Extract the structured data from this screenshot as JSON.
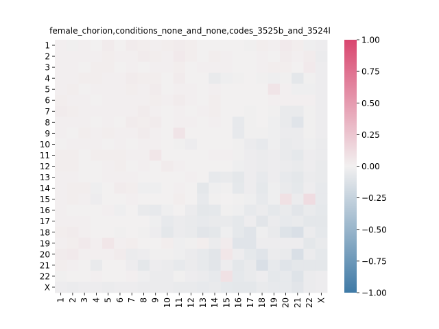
{
  "chart_data": {
    "type": "heatmap",
    "title": "female_chorion,conditions_none_and_none,codes_3525b_and_3524l",
    "xlabel": "",
    "ylabel": "",
    "x_labels": [
      "1",
      "2",
      "3",
      "4",
      "5",
      "6",
      "7",
      "8",
      "9",
      "10",
      "11",
      "12",
      "13",
      "14",
      "15",
      "16",
      "17",
      "18",
      "19",
      "20",
      "21",
      "22",
      "X"
    ],
    "y_labels": [
      "1",
      "2",
      "3",
      "4",
      "5",
      "6",
      "7",
      "8",
      "9",
      "10",
      "11",
      "12",
      "13",
      "14",
      "15",
      "16",
      "17",
      "18",
      "19",
      "20",
      "21",
      "22",
      "X"
    ],
    "color_range": [
      -1.0,
      1.0
    ],
    "colorbar": {
      "ticks": [
        "1.00",
        "0.75",
        "0.50",
        "0.25",
        "0.00",
        "−0.25",
        "−0.50",
        "−0.75",
        "−1.00"
      ],
      "colors": {
        "negative": "#3f7aa6",
        "zero": "#f2f0f0",
        "positive": "#d9466f"
      }
    },
    "values": [
      [
        0.01,
        -0.01,
        0.01,
        0.0,
        0.03,
        0.0,
        0.03,
        0.02,
        0.01,
        0.02,
        0.03,
        0.02,
        0.0,
        0.0,
        0.0,
        0.0,
        -0.01,
        0.02,
        0.01,
        0.04,
        0.02,
        -0.02,
        -0.03
      ],
      [
        0.01,
        0.01,
        0.01,
        0.01,
        0.02,
        0.01,
        0.01,
        0.03,
        0.02,
        0.01,
        0.04,
        0.02,
        0.0,
        0.02,
        0.01,
        0.0,
        0.0,
        0.01,
        0.0,
        0.03,
        0.01,
        0.03,
        -0.04
      ],
      [
        0.01,
        0.01,
        0.0,
        0.02,
        0.02,
        0.0,
        0.01,
        0.0,
        0.01,
        0.01,
        0.02,
        0.0,
        0.01,
        0.01,
        0.01,
        0.0,
        0.0,
        0.01,
        0.02,
        0.02,
        0.0,
        0.04,
        -0.03
      ],
      [
        0.01,
        0.01,
        0.02,
        0.02,
        0.01,
        0.01,
        0.03,
        0.02,
        0.02,
        0.0,
        0.03,
        0.0,
        0.0,
        -0.05,
        -0.02,
        -0.01,
        0.0,
        -0.01,
        -0.02,
        -0.01,
        -0.08,
        -0.01,
        -0.03
      ],
      [
        0.01,
        0.02,
        0.0,
        0.01,
        0.01,
        0.01,
        0.02,
        0.01,
        0.03,
        0.0,
        0.01,
        0.01,
        0.0,
        0.01,
        0.0,
        0.0,
        0.0,
        0.0,
        0.07,
        0.01,
        -0.02,
        -0.02,
        -0.03
      ],
      [
        0.02,
        0.01,
        0.01,
        0.0,
        0.01,
        0.01,
        0.01,
        0.01,
        0.02,
        0.01,
        0.03,
        0.01,
        0.0,
        0.02,
        0.0,
        0.0,
        0.0,
        0.0,
        0.01,
        0.01,
        0.01,
        0.01,
        -0.03
      ],
      [
        0.03,
        0.02,
        0.01,
        0.01,
        0.01,
        0.01,
        0.01,
        0.03,
        0.01,
        0.0,
        0.01,
        0.0,
        0.01,
        0.02,
        0.0,
        0.0,
        -0.01,
        0.0,
        -0.01,
        -0.05,
        -0.05,
        -0.01,
        -0.03
      ],
      [
        0.01,
        0.01,
        0.01,
        0.0,
        0.01,
        0.0,
        0.03,
        0.02,
        0.03,
        0.0,
        0.01,
        0.01,
        0.0,
        0.01,
        0.0,
        -0.06,
        -0.01,
        0.0,
        -0.02,
        -0.05,
        -0.1,
        -0.01,
        -0.03
      ],
      [
        0.01,
        0.0,
        0.02,
        0.01,
        0.02,
        0.01,
        0.01,
        0.03,
        0.01,
        0.0,
        0.07,
        0.0,
        0.0,
        0.0,
        0.0,
        -0.06,
        -0.01,
        -0.01,
        -0.02,
        -0.04,
        -0.04,
        -0.01,
        -0.03
      ],
      [
        0.0,
        0.01,
        0.01,
        0.01,
        0.0,
        0.01,
        0.0,
        0.01,
        0.01,
        0.0,
        -0.01,
        -0.03,
        0.0,
        0.0,
        0.0,
        -0.01,
        -0.04,
        -0.06,
        -0.02,
        -0.05,
        -0.04,
        -0.02,
        -0.04
      ],
      [
        0.02,
        0.02,
        0.0,
        0.02,
        0.02,
        0.02,
        0.01,
        0.01,
        0.06,
        0.0,
        0.0,
        0.0,
        0.0,
        0.01,
        0.01,
        -0.01,
        -0.03,
        -0.04,
        -0.03,
        -0.05,
        -0.07,
        -0.03,
        -0.04
      ],
      [
        0.02,
        0.02,
        0.0,
        0.0,
        0.01,
        0.02,
        0.0,
        0.01,
        0.0,
        0.03,
        0.01,
        0.0,
        0.0,
        0.0,
        0.0,
        -0.02,
        -0.03,
        -0.04,
        -0.03,
        -0.04,
        -0.05,
        -0.03,
        -0.05
      ],
      [
        0.01,
        0.01,
        0.0,
        0.0,
        0.01,
        0.01,
        0.01,
        0.0,
        0.0,
        0.0,
        0.0,
        0.01,
        0.0,
        -0.06,
        -0.05,
        -0.08,
        -0.03,
        -0.06,
        -0.03,
        -0.06,
        -0.08,
        -0.04,
        -0.05
      ],
      [
        0.01,
        0.02,
        0.02,
        -0.02,
        0.0,
        0.03,
        0.02,
        -0.02,
        -0.02,
        0.0,
        0.01,
        0.0,
        -0.08,
        -0.02,
        -0.01,
        -0.07,
        -0.03,
        -0.07,
        -0.02,
        -0.05,
        -0.07,
        -0.03,
        -0.06
      ],
      [
        0.01,
        0.02,
        0.01,
        -0.03,
        0.0,
        0.0,
        0.01,
        0.0,
        0.0,
        0.0,
        0.02,
        0.0,
        -0.06,
        -0.01,
        0.0,
        -0.01,
        -0.02,
        -0.06,
        -0.02,
        0.09,
        -0.04,
        0.12,
        -0.06
      ],
      [
        0.01,
        0.0,
        0.0,
        0.0,
        0.01,
        -0.02,
        0.0,
        -0.05,
        -0.06,
        -0.02,
        0.0,
        -0.04,
        -0.08,
        -0.07,
        -0.01,
        -0.02,
        -0.06,
        -0.04,
        -0.07,
        -0.05,
        -0.09,
        -0.05,
        -0.07
      ],
      [
        0.01,
        0.01,
        0.01,
        0.0,
        0.0,
        0.0,
        0.0,
        0.0,
        -0.02,
        -0.06,
        -0.04,
        -0.05,
        -0.06,
        -0.05,
        -0.05,
        -0.07,
        -0.03,
        -0.09,
        -0.04,
        -0.06,
        -0.05,
        -0.08,
        -0.08
      ],
      [
        0.02,
        0.03,
        0.01,
        0.0,
        0.0,
        -0.01,
        0.0,
        -0.01,
        -0.03,
        -0.08,
        -0.04,
        -0.05,
        -0.09,
        -0.08,
        -0.02,
        -0.07,
        -0.1,
        -0.02,
        -0.05,
        -0.11,
        -0.14,
        -0.04,
        -0.07
      ],
      [
        0.01,
        0.02,
        0.04,
        0.01,
        0.06,
        0.01,
        0.02,
        0.0,
        0.0,
        0.02,
        -0.02,
        -0.01,
        0.02,
        -0.04,
        0.03,
        -0.1,
        -0.1,
        -0.03,
        -0.03,
        -0.03,
        -0.03,
        -0.08,
        -0.05
      ],
      [
        0.03,
        0.04,
        0.01,
        0.01,
        0.01,
        0.03,
        -0.04,
        -0.03,
        -0.01,
        -0.01,
        -0.02,
        -0.04,
        -0.06,
        -0.09,
        0.06,
        -0.03,
        -0.07,
        -0.1,
        -0.04,
        -0.05,
        -0.14,
        -0.04,
        -0.07
      ],
      [
        0.02,
        0.01,
        0.0,
        -0.05,
        0.0,
        0.0,
        -0.03,
        -0.08,
        -0.03,
        -0.04,
        -0.06,
        -0.04,
        -0.06,
        -0.09,
        -0.03,
        -0.08,
        -0.05,
        -0.14,
        -0.06,
        -0.1,
        -0.08,
        -0.08,
        -0.08
      ],
      [
        -0.01,
        0.0,
        0.0,
        0.01,
        0.0,
        0.0,
        0.01,
        -0.02,
        -0.04,
        -0.04,
        -0.01,
        -0.03,
        -0.04,
        -0.06,
        0.09,
        -0.07,
        -0.05,
        -0.03,
        -0.07,
        -0.06,
        -0.11,
        -0.04,
        -0.03
      ],
      [
        -0.03,
        -0.04,
        -0.03,
        -0.03,
        -0.04,
        -0.03,
        -0.03,
        -0.04,
        -0.04,
        -0.04,
        -0.05,
        -0.05,
        -0.06,
        -0.05,
        -0.07,
        -0.08,
        -0.08,
        -0.05,
        -0.06,
        -0.06,
        -0.09,
        -0.04,
        -0.03
      ]
    ]
  }
}
